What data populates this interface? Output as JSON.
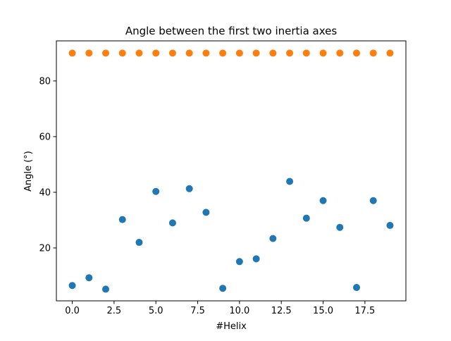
{
  "chart_data": {
    "type": "scatter",
    "title": "Angle between the first two inertia axes",
    "xlabel": "#Helix",
    "ylabel": "Angle (°)",
    "xlim": [
      -0.95,
      19.95
    ],
    "ylim": [
      1.0,
      94.4
    ],
    "xticks": [
      0.0,
      2.5,
      5.0,
      7.5,
      10.0,
      12.5,
      15.0,
      17.5
    ],
    "xtick_labels": [
      "0.0",
      "2.5",
      "5.0",
      "7.5",
      "10.0",
      "12.5",
      "15.0",
      "17.5"
    ],
    "yticks": [
      20,
      40,
      60,
      80
    ],
    "ytick_labels": [
      "20",
      "40",
      "60",
      "80"
    ],
    "grid": false,
    "legend": "none",
    "x": [
      0,
      1,
      2,
      3,
      4,
      5,
      6,
      7,
      8,
      9,
      10,
      11,
      12,
      13,
      14,
      15,
      16,
      17,
      18,
      19
    ],
    "series": [
      {
        "color": "#1f77b4",
        "values": [
          6.5,
          9.3,
          5.2,
          30.2,
          22.0,
          40.3,
          29.0,
          41.3,
          32.8,
          5.5,
          15.1,
          16.1,
          23.4,
          43.9,
          30.7,
          37.0,
          27.4,
          5.8,
          37.0,
          28.1
        ]
      },
      {
        "color": "#ff7f0e",
        "values": [
          90,
          90,
          90,
          90,
          90,
          90,
          90,
          90,
          90,
          90,
          90,
          90,
          90,
          90,
          90,
          90,
          90,
          90,
          90,
          90
        ]
      }
    ]
  }
}
